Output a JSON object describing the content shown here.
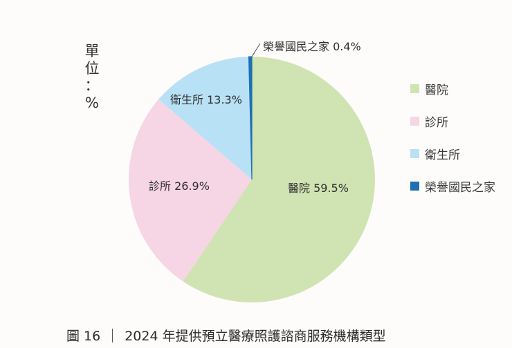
{
  "unit_label": [
    "單",
    "位",
    "：",
    "%"
  ],
  "caption": {
    "figure_no": "圖 16",
    "title": "2024 年提供預立醫療照護諮商服務機構類型"
  },
  "labels": {
    "hospital": "醫院 59.5%",
    "clinic": "診所 26.9%",
    "health_center": "衛生所 13.3%",
    "veterans_home": "榮譽國民之家 0.4%"
  },
  "legend": [
    {
      "label": "醫院",
      "color": "#cfe4b2"
    },
    {
      "label": "診所",
      "color": "#f6d5e5"
    },
    {
      "label": "衛生所",
      "color": "#b9e1f6"
    },
    {
      "label": "榮譽國民之家",
      "color": "#1f6fb4"
    }
  ],
  "chart_data": {
    "type": "pie",
    "title": "2024 年提供預立醫療照護諮商服務機構類型",
    "figure_number": "圖 16",
    "unit": "%",
    "categories": [
      "醫院",
      "診所",
      "衛生所",
      "榮譽國民之家"
    ],
    "values": [
      59.5,
      26.9,
      13.3,
      0.4
    ],
    "colors": [
      "#cfe4b2",
      "#f6d5e5",
      "#b9e1f6",
      "#1f6fb4"
    ],
    "start_angle": "12 o'clock, clockwise",
    "legend_position": "right"
  }
}
